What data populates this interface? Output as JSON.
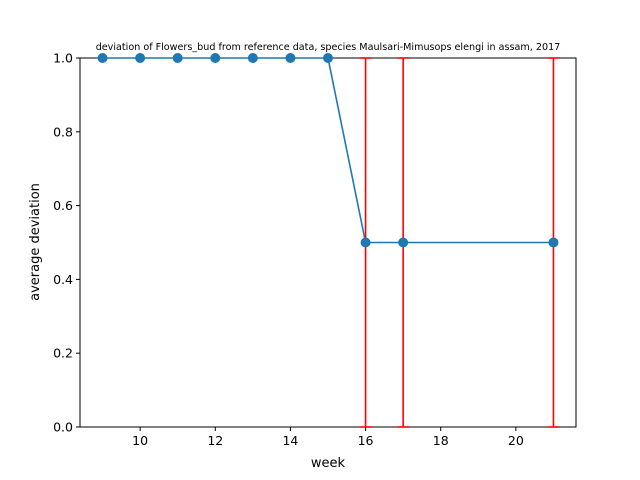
{
  "chart_data": {
    "type": "line",
    "title": "deviation of Flowers_bud from reference data, species Maulsari-Mimusops elengi in assam, 2017",
    "xlabel": "week",
    "ylabel": "average deviation",
    "xlim": [
      8.4,
      21.6
    ],
    "ylim": [
      0.0,
      1.0
    ],
    "x_ticks": [
      10,
      12,
      14,
      16,
      18,
      20
    ],
    "y_ticks": [
      0.0,
      0.2,
      0.4,
      0.6,
      0.8,
      1.0
    ],
    "x_tick_labels": [
      "10",
      "12",
      "14",
      "16",
      "18",
      "20"
    ],
    "y_tick_labels": [
      "0.0",
      "0.2",
      "0.4",
      "0.6",
      "0.8",
      "1.0"
    ],
    "grid": false,
    "series": [
      {
        "x": [
          9,
          10,
          11,
          12,
          13,
          14,
          15,
          16,
          17,
          21
        ],
        "y": [
          1.0,
          1.0,
          1.0,
          1.0,
          1.0,
          1.0,
          1.0,
          0.5,
          0.5,
          0.5
        ],
        "yerr": [
          0,
          0,
          0,
          0,
          0,
          0,
          0,
          0.5,
          0.5,
          0.5
        ],
        "color": "#1f77b4",
        "errorbar_color": "#ff0000",
        "marker": "circle"
      }
    ]
  }
}
